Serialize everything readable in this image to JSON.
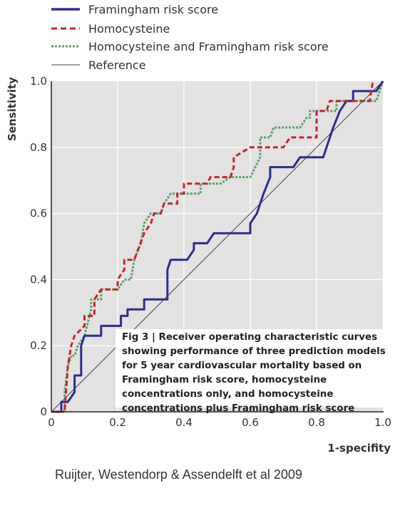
{
  "legend": {
    "items": [
      {
        "label": "Framingham risk score",
        "color": "#2b2f8a",
        "style": "solid-thick"
      },
      {
        "label": "Homocysteine",
        "color": "#c0282d",
        "style": "dashed"
      },
      {
        "label": "Homocysteine and Framingham risk score",
        "color": "#5aa066",
        "style": "dotted"
      },
      {
        "label": "Reference",
        "color": "#444444",
        "style": "solid-thin"
      }
    ]
  },
  "caption": {
    "fig_label": "Fig 3",
    "text": "Receiver operating characteristic curves showing performance of three prediction models for 5 year cardiovascular mortality based on Framingham risk score, homocysteine concentrations only, and homocysteine concentrations plus Framingham risk score"
  },
  "source_note": "Ruijter, Westendorp & Assendelft et al 2009",
  "chart_data": {
    "type": "line",
    "xlabel": "1-specifity",
    "ylabel": "Sensitivity",
    "xlim": [
      0,
      1
    ],
    "ylim": [
      0,
      1
    ],
    "x_ticks": [
      "0",
      "0.2",
      "0.4",
      "0.6",
      "0.8",
      "1.0"
    ],
    "y_ticks": [
      "0",
      "0.2",
      "0.4",
      "0.6",
      "0.8",
      "1.0"
    ],
    "grid": true,
    "legend_position": "top",
    "series": [
      {
        "name": "Framingham risk score",
        "color": "#2b2f8a",
        "points": [
          [
            0,
            0
          ],
          [
            0.03,
            0
          ],
          [
            0.03,
            0.03
          ],
          [
            0.05,
            0.03
          ],
          [
            0.07,
            0.06
          ],
          [
            0.07,
            0.11
          ],
          [
            0.09,
            0.11
          ],
          [
            0.09,
            0.2
          ],
          [
            0.1,
            0.23
          ],
          [
            0.15,
            0.23
          ],
          [
            0.15,
            0.26
          ],
          [
            0.21,
            0.26
          ],
          [
            0.21,
            0.29
          ],
          [
            0.23,
            0.29
          ],
          [
            0.23,
            0.31
          ],
          [
            0.28,
            0.31
          ],
          [
            0.28,
            0.34
          ],
          [
            0.35,
            0.34
          ],
          [
            0.35,
            0.43
          ],
          [
            0.36,
            0.46
          ],
          [
            0.41,
            0.46
          ],
          [
            0.43,
            0.49
          ],
          [
            0.43,
            0.51
          ],
          [
            0.47,
            0.51
          ],
          [
            0.49,
            0.54
          ],
          [
            0.6,
            0.54
          ],
          [
            0.6,
            0.57
          ],
          [
            0.62,
            0.6
          ],
          [
            0.63,
            0.63
          ],
          [
            0.64,
            0.66
          ],
          [
            0.66,
            0.71
          ],
          [
            0.66,
            0.74
          ],
          [
            0.73,
            0.74
          ],
          [
            0.75,
            0.77
          ],
          [
            0.82,
            0.77
          ],
          [
            0.85,
            0.86
          ],
          [
            0.87,
            0.91
          ],
          [
            0.89,
            0.94
          ],
          [
            0.91,
            0.94
          ],
          [
            0.91,
            0.97
          ],
          [
            0.98,
            0.97
          ],
          [
            1.0,
            1.0
          ]
        ]
      },
      {
        "name": "Homocysteine",
        "color": "#c0282d",
        "points": [
          [
            0,
            0
          ],
          [
            0.04,
            0
          ],
          [
            0.05,
            0.14
          ],
          [
            0.06,
            0.2
          ],
          [
            0.07,
            0.23
          ],
          [
            0.1,
            0.26
          ],
          [
            0.1,
            0.29
          ],
          [
            0.13,
            0.29
          ],
          [
            0.13,
            0.34
          ],
          [
            0.15,
            0.37
          ],
          [
            0.2,
            0.37
          ],
          [
            0.2,
            0.4
          ],
          [
            0.22,
            0.43
          ],
          [
            0.22,
            0.46
          ],
          [
            0.25,
            0.46
          ],
          [
            0.28,
            0.54
          ],
          [
            0.3,
            0.57
          ],
          [
            0.31,
            0.6
          ],
          [
            0.33,
            0.6
          ],
          [
            0.34,
            0.63
          ],
          [
            0.38,
            0.63
          ],
          [
            0.38,
            0.66
          ],
          [
            0.4,
            0.66
          ],
          [
            0.4,
            0.69
          ],
          [
            0.47,
            0.69
          ],
          [
            0.48,
            0.71
          ],
          [
            0.54,
            0.71
          ],
          [
            0.55,
            0.74
          ],
          [
            0.55,
            0.77
          ],
          [
            0.6,
            0.8
          ],
          [
            0.7,
            0.8
          ],
          [
            0.72,
            0.83
          ],
          [
            0.8,
            0.83
          ],
          [
            0.8,
            0.91
          ],
          [
            0.83,
            0.91
          ],
          [
            0.84,
            0.94
          ],
          [
            0.96,
            0.94
          ],
          [
            0.97,
            1.0
          ]
        ]
      },
      {
        "name": "Homocysteine and Framingham risk score",
        "color": "#5aa066",
        "points": [
          [
            0,
            0
          ],
          [
            0.04,
            0
          ],
          [
            0.04,
            0.06
          ],
          [
            0.05,
            0.14
          ],
          [
            0.06,
            0.17
          ],
          [
            0.07,
            0.17
          ],
          [
            0.08,
            0.2
          ],
          [
            0.1,
            0.23
          ],
          [
            0.12,
            0.31
          ],
          [
            0.12,
            0.34
          ],
          [
            0.15,
            0.34
          ],
          [
            0.15,
            0.37
          ],
          [
            0.2,
            0.37
          ],
          [
            0.22,
            0.4
          ],
          [
            0.24,
            0.4
          ],
          [
            0.25,
            0.46
          ],
          [
            0.27,
            0.51
          ],
          [
            0.28,
            0.57
          ],
          [
            0.3,
            0.6
          ],
          [
            0.33,
            0.6
          ],
          [
            0.34,
            0.63
          ],
          [
            0.36,
            0.66
          ],
          [
            0.45,
            0.66
          ],
          [
            0.45,
            0.69
          ],
          [
            0.51,
            0.69
          ],
          [
            0.54,
            0.71
          ],
          [
            0.6,
            0.71
          ],
          [
            0.63,
            0.77
          ],
          [
            0.63,
            0.83
          ],
          [
            0.66,
            0.83
          ],
          [
            0.67,
            0.86
          ],
          [
            0.75,
            0.86
          ],
          [
            0.77,
            0.89
          ],
          [
            0.78,
            0.89
          ],
          [
            0.78,
            0.91
          ],
          [
            0.86,
            0.91
          ],
          [
            0.86,
            0.94
          ],
          [
            0.98,
            0.94
          ],
          [
            1.0,
            1.0
          ]
        ]
      },
      {
        "name": "Reference",
        "color": "#444444",
        "points": [
          [
            0,
            0
          ],
          [
            1,
            1
          ]
        ]
      }
    ]
  }
}
